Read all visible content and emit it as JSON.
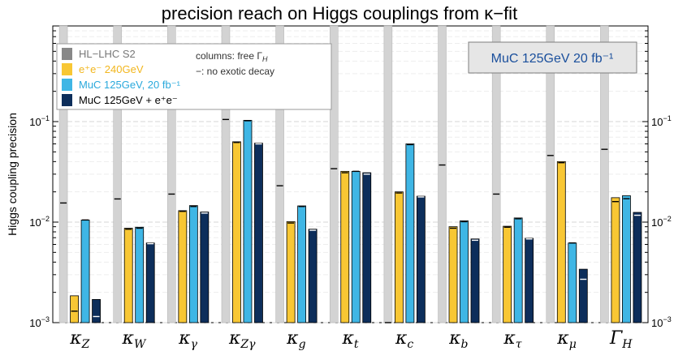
{
  "chart_data": {
    "type": "bar",
    "title": "precision reach on Higgs couplings from κ−fit",
    "ylabel": "Higgs coupling precision",
    "yscale": "log",
    "ylim": [
      0.001,
      0.3
    ],
    "y_ticks": [
      {
        "value": 0.001,
        "base": "10",
        "exp": "−3"
      },
      {
        "value": 0.01,
        "base": "10",
        "exp": "−2"
      },
      {
        "value": 0.1,
        "base": "10",
        "exp": "−1"
      }
    ],
    "categories": [
      {
        "sym": "κ",
        "sub": "Z"
      },
      {
        "sym": "κ",
        "sub": "W"
      },
      {
        "sym": "κ",
        "sub": "γ"
      },
      {
        "sym": "κ",
        "sub": "Zγ"
      },
      {
        "sym": "κ",
        "sub": "g"
      },
      {
        "sym": "κ",
        "sub": "t"
      },
      {
        "sym": "κ",
        "sub": "c"
      },
      {
        "sym": "κ",
        "sub": "b"
      },
      {
        "sym": "κ",
        "sub": "τ"
      },
      {
        "sym": "κ",
        "sub": "μ"
      },
      {
        "sym": "Γ",
        "sub": "H"
      }
    ],
    "series": [
      {
        "name": "HL−LHC S2",
        "color": "#d3d3d3",
        "legend_color": "#888888",
        "values": [
          null,
          null,
          null,
          null,
          null,
          null,
          null,
          null,
          null,
          null,
          null
        ],
        "no_exotic": [
          0.0155,
          0.017,
          0.019,
          0.105,
          0.023,
          0.034,
          0.001,
          0.037,
          0.019,
          0.046,
          0.053
        ]
      },
      {
        "name": "e⁺e⁻ 240GeV",
        "color": "#f8c734",
        "values": [
          0.00185,
          0.0087,
          0.013,
          0.063,
          0.0101,
          0.032,
          0.02,
          0.009,
          0.0091,
          0.04,
          0.0175
        ],
        "no_exotic": [
          0.0013,
          0.0085,
          0.0128,
          0.062,
          0.0098,
          0.031,
          0.0195,
          0.0087,
          0.0089,
          0.039,
          0.016
        ]
      },
      {
        "name": "MuC 125GeV, 20 fb⁻¹",
        "color": "#3fb6e5",
        "values": [
          0.0105,
          0.0089,
          0.0146,
          0.103,
          0.0145,
          0.032,
          0.06,
          0.0103,
          0.011,
          0.0062,
          0.0183
        ],
        "no_exotic": [
          0.0105,
          0.0087,
          0.0143,
          0.102,
          0.0143,
          0.032,
          0.059,
          0.0101,
          0.0108,
          0.0062,
          0.0171
        ]
      },
      {
        "name": "MuC 125GeV + e⁺e⁻",
        "color": "#0d2e5b",
        "values": [
          0.0017,
          0.0062,
          0.0126,
          0.061,
          0.0085,
          0.031,
          0.0181,
          0.0068,
          0.0069,
          0.0034,
          0.0125
        ],
        "no_exotic": [
          0.00115,
          0.0061,
          0.0123,
          0.06,
          0.0083,
          0.03,
          0.0178,
          0.0066,
          0.0068,
          0.0027,
          0.0117
        ]
      }
    ],
    "notes": {
      "columns": "columns: free Γ",
      "columns_sub": "H",
      "dash": "−: no exotic decay"
    },
    "badge": "MuC 125GeV 20 fb⁻¹",
    "grid": true,
    "legend_position": "top-left"
  }
}
